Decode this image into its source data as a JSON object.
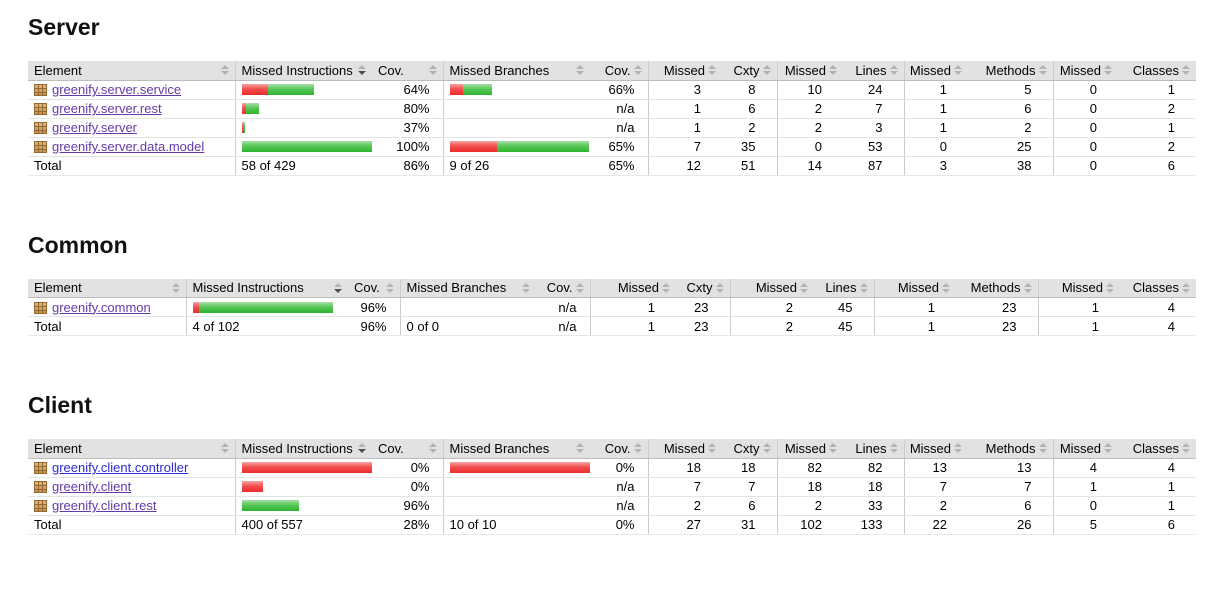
{
  "palette": {
    "header_bg": "#e2e2e2",
    "bar_red": "#ee2b2b",
    "bar_green": "#2db32d",
    "link_visited": "#6639a6",
    "link_unvisited": "#2b2bd5"
  },
  "columns": [
    "Element",
    "Missed Instructions",
    "Cov.",
    "Missed Branches",
    "Cov.",
    "Missed",
    "Cxty",
    "Missed",
    "Lines",
    "Missed",
    "Methods",
    "Missed",
    "Classes"
  ],
  "sorted_column": "Missed Instructions",
  "sections": [
    {
      "title": "Server",
      "rows": [
        {
          "name": "greenify.server.service",
          "visited": true,
          "mi_bar": {
            "red": 26,
            "green": 46
          },
          "cov_instructions": "64%",
          "mb_bar": {
            "red": 13,
            "green": 29
          },
          "cov_branches": "66%",
          "metrics": [
            3,
            8,
            10,
            24,
            1,
            5,
            0,
            1
          ]
        },
        {
          "name": "greenify.server.rest",
          "visited": true,
          "mi_bar": {
            "red": 4,
            "green": 13
          },
          "cov_instructions": "80%",
          "mb_bar": {
            "red": 0,
            "green": 0
          },
          "cov_branches": "n/a",
          "metrics": [
            1,
            6,
            2,
            7,
            1,
            6,
            0,
            2
          ]
        },
        {
          "name": "greenify.server",
          "visited": true,
          "mi_bar": {
            "red": 2,
            "green": 1
          },
          "cov_instructions": "37%",
          "mb_bar": {
            "red": 0,
            "green": 0
          },
          "cov_branches": "n/a",
          "metrics": [
            1,
            2,
            2,
            3,
            1,
            2,
            0,
            1
          ]
        },
        {
          "name": "greenify.server.data.model",
          "visited": true,
          "mi_bar": {
            "red": 0,
            "green": 140
          },
          "cov_instructions": "100%",
          "mb_bar": {
            "red": 47,
            "green": 92
          },
          "cov_branches": "65%",
          "metrics": [
            7,
            35,
            0,
            53,
            0,
            25,
            0,
            2
          ]
        }
      ],
      "total": {
        "label": "Total",
        "missed_instructions": "58 of 429",
        "cov_instructions": "86%",
        "missed_branches": "9 of 26",
        "cov_branches": "65%",
        "metrics": [
          12,
          51,
          14,
          87,
          3,
          38,
          0,
          6
        ]
      }
    },
    {
      "title": "Common",
      "rows": [
        {
          "name": "greenify.common",
          "visited": true,
          "mi_bar": {
            "red": 6,
            "green": 134
          },
          "cov_instructions": "96%",
          "mb_bar": {
            "red": 0,
            "green": 0
          },
          "cov_branches": "n/a",
          "metrics": [
            1,
            23,
            2,
            45,
            1,
            23,
            1,
            4
          ]
        }
      ],
      "total": {
        "label": "Total",
        "missed_instructions": "4 of 102",
        "cov_instructions": "96%",
        "missed_branches": "0 of 0",
        "cov_branches": "n/a",
        "metrics": [
          1,
          23,
          2,
          45,
          1,
          23,
          1,
          4
        ]
      }
    },
    {
      "title": "Client",
      "rows": [
        {
          "name": "greenify.client.controller",
          "visited": false,
          "mi_bar": {
            "red": 140,
            "green": 0
          },
          "cov_instructions": "0%",
          "mb_bar": {
            "red": 140,
            "green": 0
          },
          "cov_branches": "0%",
          "metrics": [
            18,
            18,
            82,
            82,
            13,
            13,
            4,
            4
          ]
        },
        {
          "name": "greenify.client",
          "visited": true,
          "mi_bar": {
            "red": 21,
            "green": 0
          },
          "cov_instructions": "0%",
          "mb_bar": {
            "red": 0,
            "green": 0
          },
          "cov_branches": "n/a",
          "metrics": [
            7,
            7,
            18,
            18,
            7,
            7,
            1,
            1
          ]
        },
        {
          "name": "greenify.client.rest",
          "visited": true,
          "mi_bar": {
            "red": 0,
            "green": 57
          },
          "cov_instructions": "96%",
          "mb_bar": {
            "red": 0,
            "green": 0
          },
          "cov_branches": "n/a",
          "metrics": [
            2,
            6,
            2,
            33,
            2,
            6,
            0,
            1
          ]
        }
      ],
      "total": {
        "label": "Total",
        "missed_instructions": "400 of 557",
        "cov_instructions": "28%",
        "missed_branches": "10 of 10",
        "cov_branches": "0%",
        "metrics": [
          27,
          31,
          102,
          133,
          22,
          26,
          5,
          6
        ]
      }
    }
  ]
}
